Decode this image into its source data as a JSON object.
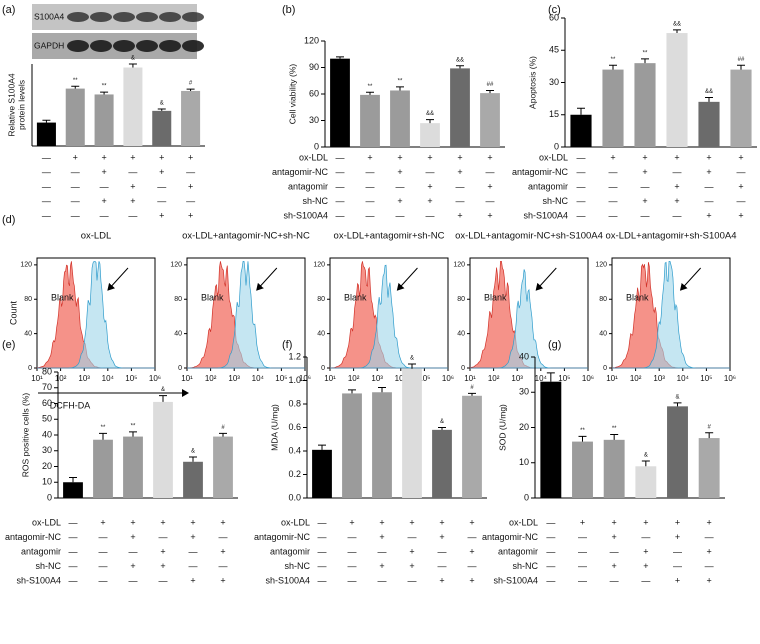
{
  "conditions": {
    "rows": [
      "ox-LDL",
      "antagomir-NC",
      "antagomir",
      "sh-NC",
      "sh-S100A4"
    ],
    "signs": [
      [
        "—",
        "+",
        "+",
        "+",
        "+",
        "+"
      ],
      [
        "—",
        "—",
        "+",
        "—",
        "+",
        "—"
      ],
      [
        "—",
        "—",
        "—",
        "+",
        "—",
        "+"
      ],
      [
        "—",
        "—",
        "+",
        "+",
        "—",
        "—"
      ],
      [
        "—",
        "—",
        "—",
        "—",
        "+",
        "+"
      ]
    ]
  },
  "chart_data": [
    {
      "type": "bar",
      "label": "(a)",
      "blot_labels": [
        "S100A4",
        "GAPDH"
      ],
      "y_label": [
        "Relative S100A4",
        "protein levels"
      ],
      "show_condition_labels": false,
      "values": [
        1.0,
        2.45,
        2.2,
        3.35,
        1.5,
        2.35
      ],
      "errors": [
        0.1,
        0.1,
        0.1,
        0.15,
        0.08,
        0.08
      ],
      "annotations": [
        null,
        "**",
        "**",
        "&",
        "&",
        "#"
      ],
      "colors": [
        "#000000",
        "#9b9b9b",
        "#9b9b9b",
        "#dcdcdc",
        "#6b6b6b",
        "#a9a9a9"
      ],
      "ylim": [
        0,
        3.5
      ],
      "yticks": []
    },
    {
      "type": "bar",
      "label": "(b)",
      "y_label": "Cell viability (%)",
      "show_condition_labels": true,
      "values": [
        100,
        59,
        64,
        27,
        89,
        61
      ],
      "errors": [
        2,
        3,
        4,
        4,
        3,
        3
      ],
      "annotations": [
        null,
        "**",
        "**",
        "&&",
        "&&",
        "##"
      ],
      "colors": [
        "#000000",
        "#9b9b9b",
        "#9b9b9b",
        "#dcdcdc",
        "#6b6b6b",
        "#a9a9a9"
      ],
      "ylim": [
        0,
        120
      ],
      "yticks": [
        0,
        30,
        60,
        90,
        120
      ]
    },
    {
      "type": "bar",
      "label": "(c)",
      "y_label": "Apoptosis (%)",
      "show_condition_labels": true,
      "values": [
        15,
        36,
        39,
        53,
        21,
        36
      ],
      "errors": [
        3,
        2,
        2,
        1.5,
        2,
        2
      ],
      "annotations": [
        null,
        "**",
        "**",
        "&&",
        "&&",
        "##"
      ],
      "colors": [
        "#000000",
        "#9b9b9b",
        "#9b9b9b",
        "#dcdcdc",
        "#6b6b6b",
        "#a9a9a9"
      ],
      "ylim": [
        0,
        60
      ],
      "yticks": [
        0,
        15,
        30,
        45,
        60
      ]
    },
    {
      "type": "flow",
      "label": "(d)",
      "y_label": "Count",
      "x_label": "DCFH-DA",
      "blank_label": "Blank",
      "titles": [
        "ox-LDL",
        "ox-LDL+antagomir-NC+sh-NC",
        "ox-LDL+antagomir+sh-NC",
        "ox-LDL+antagomir-NC+sh-S100A4",
        "ox-LDL+antagomir+sh-S100A4"
      ],
      "xscale": "log",
      "xlim": [
        10,
        1000000
      ],
      "xticks": [
        {
          "value": 10,
          "label": "10¹"
        },
        {
          "value": 100,
          "label": "10²"
        },
        {
          "value": 1000,
          "label": "10³"
        },
        {
          "value": 10000,
          "label": "10⁴"
        },
        {
          "value": 100000,
          "label": "10⁵"
        },
        {
          "value": 1000000,
          "label": "10⁶"
        }
      ],
      "ylim": [
        0,
        128
      ],
      "yticks": [
        0,
        40,
        80,
        120
      ]
    },
    {
      "type": "bar",
      "label": "(e)",
      "y_label": "ROS positive cells (%)",
      "show_condition_labels": true,
      "values": [
        10,
        37,
        39,
        61,
        23,
        39
      ],
      "errors": [
        3,
        4,
        3,
        4,
        3,
        2
      ],
      "annotations": [
        null,
        "**",
        "**",
        "&",
        "&",
        "#"
      ],
      "colors": [
        "#000000",
        "#9b9b9b",
        "#9b9b9b",
        "#dcdcdc",
        "#6b6b6b",
        "#a9a9a9"
      ],
      "ylim": [
        0,
        80
      ],
      "yticks": [
        0,
        10,
        20,
        30,
        40,
        50,
        60,
        70,
        80
      ]
    },
    {
      "type": "bar",
      "label": "(f)",
      "y_label": "MDA (U/mg)",
      "show_condition_labels": true,
      "values": [
        0.41,
        0.89,
        0.9,
        1.1,
        0.58,
        0.87
      ],
      "errors": [
        0.04,
        0.03,
        0.04,
        0.04,
        0.02,
        0.02
      ],
      "annotations": [
        null,
        null,
        null,
        "&",
        "&",
        "#"
      ],
      "colors": [
        "#000000",
        "#9b9b9b",
        "#9b9b9b",
        "#dcdcdc",
        "#6b6b6b",
        "#a9a9a9"
      ],
      "ylim": [
        0,
        1.2
      ],
      "yticks": [
        {
          "value": 0,
          "label": "0.0"
        },
        0.2,
        0.4,
        0.6,
        0.8,
        {
          "value": 1,
          "label": "1.0"
        },
        1.2
      ]
    },
    {
      "type": "bar",
      "label": "(g)",
      "y_label": "SOD (U/mg)",
      "show_condition_labels": true,
      "values": [
        33,
        16,
        16.5,
        9,
        26,
        17
      ],
      "errors": [
        2.5,
        1.5,
        1.5,
        1.5,
        1,
        1.5
      ],
      "annotations": [
        null,
        "**",
        "**",
        "&",
        "&",
        "#"
      ],
      "colors": [
        "#000000",
        "#9b9b9b",
        "#9b9b9b",
        "#dcdcdc",
        "#6b6b6b",
        "#a9a9a9"
      ],
      "ylim": [
        0,
        40
      ],
      "yticks": [
        0,
        10,
        20,
        30,
        40
      ]
    }
  ]
}
